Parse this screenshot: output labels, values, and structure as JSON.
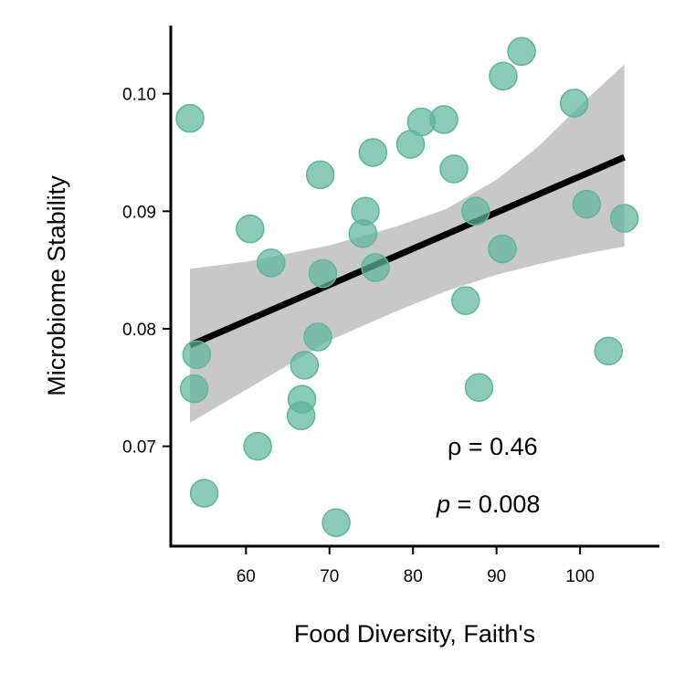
{
  "chart_data": {
    "type": "scatter",
    "title": "",
    "xlabel": "Food Diversity, Faith's",
    "ylabel": "Microbiome Stability",
    "xlim": [
      51,
      109.5
    ],
    "ylim": [
      0.0615,
      0.1058
    ],
    "x_ticks": [
      60,
      70,
      80,
      90,
      100
    ],
    "y_ticks": [
      0.07,
      0.08,
      0.09,
      0.1
    ],
    "x_tick_labels": [
      "60",
      "70",
      "80",
      "90",
      "100"
    ],
    "y_tick_labels": [
      "0.07",
      "0.08",
      "0.09",
      "0.10"
    ],
    "grid": false,
    "colors": {
      "points": "#5fb59c",
      "line": "#000000",
      "band": "#c8c8c8"
    },
    "points": [
      {
        "x": 53.3,
        "y": 0.0979
      },
      {
        "x": 54.1,
        "y": 0.0778
      },
      {
        "x": 53.8,
        "y": 0.0749
      },
      {
        "x": 55.0,
        "y": 0.066
      },
      {
        "x": 60.5,
        "y": 0.0885
      },
      {
        "x": 61.4,
        "y": 0.07
      },
      {
        "x": 63.0,
        "y": 0.0856
      },
      {
        "x": 66.7,
        "y": 0.074
      },
      {
        "x": 66.6,
        "y": 0.0726
      },
      {
        "x": 67.0,
        "y": 0.0769
      },
      {
        "x": 68.6,
        "y": 0.0793
      },
      {
        "x": 68.9,
        "y": 0.0931
      },
      {
        "x": 69.2,
        "y": 0.0847
      },
      {
        "x": 70.8,
        "y": 0.0635
      },
      {
        "x": 74.0,
        "y": 0.0881
      },
      {
        "x": 74.3,
        "y": 0.09
      },
      {
        "x": 75.2,
        "y": 0.095
      },
      {
        "x": 75.5,
        "y": 0.0852
      },
      {
        "x": 79.7,
        "y": 0.0957
      },
      {
        "x": 81.0,
        "y": 0.0976
      },
      {
        "x": 83.7,
        "y": 0.0978
      },
      {
        "x": 84.9,
        "y": 0.0936
      },
      {
        "x": 86.3,
        "y": 0.0824
      },
      {
        "x": 87.5,
        "y": 0.09
      },
      {
        "x": 87.9,
        "y": 0.075
      },
      {
        "x": 90.7,
        "y": 0.0868
      },
      {
        "x": 90.8,
        "y": 0.1015
      },
      {
        "x": 93.0,
        "y": 0.1036
      },
      {
        "x": 99.3,
        "y": 0.0992
      },
      {
        "x": 100.8,
        "y": 0.0906
      },
      {
        "x": 103.4,
        "y": 0.0781
      },
      {
        "x": 105.3,
        "y": 0.0894
      }
    ],
    "regression": {
      "x_start": 53.3,
      "y_start": 0.0786,
      "x_end": 105.3,
      "y_end": 0.0946
    },
    "confidence_band": {
      "x": [
        53.3,
        60,
        70,
        78,
        84,
        90,
        95,
        100,
        105.3
      ],
      "upper": [
        0.0851,
        0.0857,
        0.0871,
        0.0887,
        0.0902,
        0.0927,
        0.0955,
        0.099,
        0.1025
      ],
      "lower": [
        0.072,
        0.0748,
        0.079,
        0.0815,
        0.0832,
        0.0846,
        0.0855,
        0.0863,
        0.087
      ]
    },
    "annotations": {
      "rho_symbol": "ρ",
      "rho_text": " = 0.46",
      "p_symbol": "p",
      "p_text": " = 0.008"
    }
  }
}
